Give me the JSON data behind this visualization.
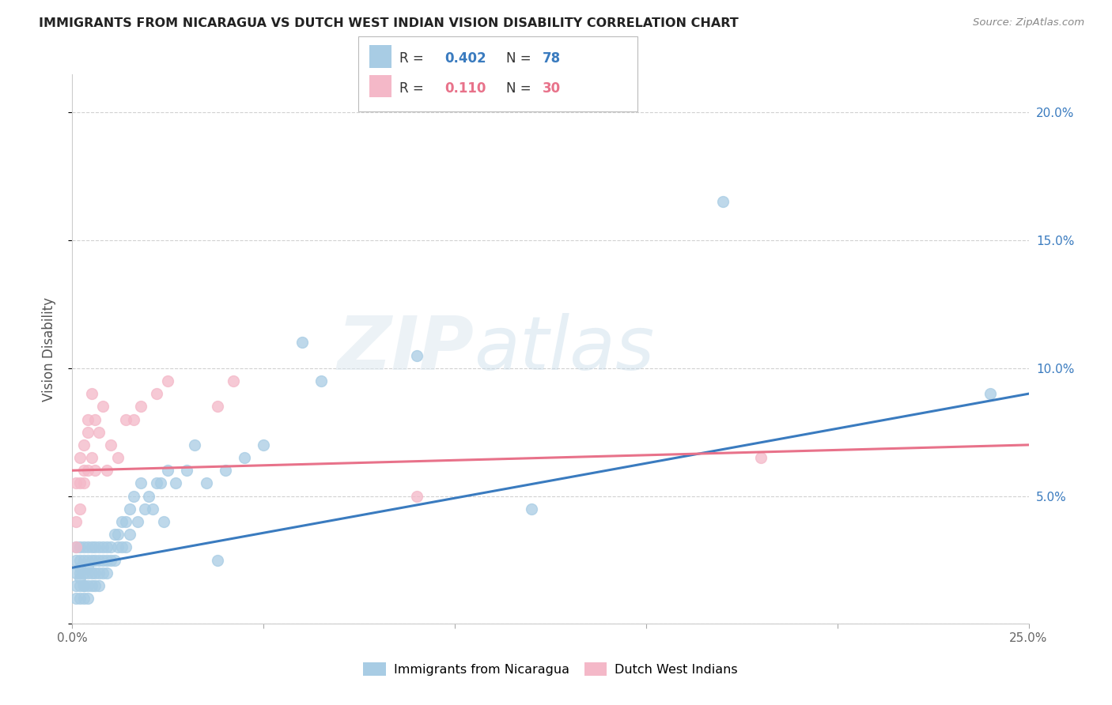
{
  "title": "IMMIGRANTS FROM NICARAGUA VS DUTCH WEST INDIAN VISION DISABILITY CORRELATION CHART",
  "source": "Source: ZipAtlas.com",
  "ylabel": "Vision Disability",
  "x_min": 0.0,
  "x_max": 0.25,
  "y_min": 0.0,
  "y_max": 0.215,
  "blue_color": "#a8cce4",
  "pink_color": "#f4b8c8",
  "line_blue": "#3a7bbf",
  "line_pink": "#e8728a",
  "legend_R1": "0.402",
  "legend_N1": "78",
  "legend_R2": "0.110",
  "legend_N2": "30",
  "label1": "Immigrants from Nicaragua",
  "label2": "Dutch West Indians",
  "watermark": "ZIPatlas",
  "blue_x": [
    0.001,
    0.001,
    0.001,
    0.001,
    0.001,
    0.002,
    0.002,
    0.002,
    0.002,
    0.002,
    0.002,
    0.002,
    0.003,
    0.003,
    0.003,
    0.003,
    0.003,
    0.003,
    0.004,
    0.004,
    0.004,
    0.004,
    0.004,
    0.004,
    0.005,
    0.005,
    0.005,
    0.005,
    0.006,
    0.006,
    0.006,
    0.006,
    0.007,
    0.007,
    0.007,
    0.007,
    0.008,
    0.008,
    0.008,
    0.009,
    0.009,
    0.009,
    0.01,
    0.01,
    0.011,
    0.011,
    0.012,
    0.012,
    0.013,
    0.013,
    0.014,
    0.014,
    0.015,
    0.015,
    0.016,
    0.017,
    0.018,
    0.019,
    0.02,
    0.021,
    0.022,
    0.023,
    0.024,
    0.025,
    0.027,
    0.03,
    0.032,
    0.035,
    0.038,
    0.04,
    0.045,
    0.05,
    0.06,
    0.065,
    0.09,
    0.12,
    0.17,
    0.24
  ],
  "blue_y": [
    0.02,
    0.025,
    0.015,
    0.03,
    0.01,
    0.02,
    0.025,
    0.015,
    0.03,
    0.01,
    0.018,
    0.022,
    0.015,
    0.025,
    0.02,
    0.01,
    0.03,
    0.015,
    0.02,
    0.025,
    0.015,
    0.03,
    0.01,
    0.022,
    0.02,
    0.025,
    0.015,
    0.03,
    0.02,
    0.025,
    0.015,
    0.03,
    0.02,
    0.03,
    0.025,
    0.015,
    0.025,
    0.03,
    0.02,
    0.025,
    0.03,
    0.02,
    0.03,
    0.025,
    0.035,
    0.025,
    0.035,
    0.03,
    0.04,
    0.03,
    0.04,
    0.03,
    0.045,
    0.035,
    0.05,
    0.04,
    0.055,
    0.045,
    0.05,
    0.045,
    0.055,
    0.055,
    0.04,
    0.06,
    0.055,
    0.06,
    0.07,
    0.055,
    0.025,
    0.06,
    0.065,
    0.07,
    0.11,
    0.095,
    0.105,
    0.045,
    0.165,
    0.09
  ],
  "pink_x": [
    0.001,
    0.001,
    0.001,
    0.002,
    0.002,
    0.002,
    0.003,
    0.003,
    0.003,
    0.004,
    0.004,
    0.004,
    0.005,
    0.005,
    0.006,
    0.006,
    0.007,
    0.008,
    0.009,
    0.01,
    0.012,
    0.014,
    0.016,
    0.018,
    0.022,
    0.025,
    0.038,
    0.042,
    0.09,
    0.18
  ],
  "pink_y": [
    0.03,
    0.055,
    0.04,
    0.065,
    0.045,
    0.055,
    0.06,
    0.07,
    0.055,
    0.075,
    0.06,
    0.08,
    0.065,
    0.09,
    0.08,
    0.06,
    0.075,
    0.085,
    0.06,
    0.07,
    0.065,
    0.08,
    0.08,
    0.085,
    0.09,
    0.095,
    0.085,
    0.095,
    0.05,
    0.065
  ],
  "blue_line_start_y": 0.022,
  "blue_line_end_y": 0.09,
  "pink_line_start_y": 0.06,
  "pink_line_end_y": 0.07
}
